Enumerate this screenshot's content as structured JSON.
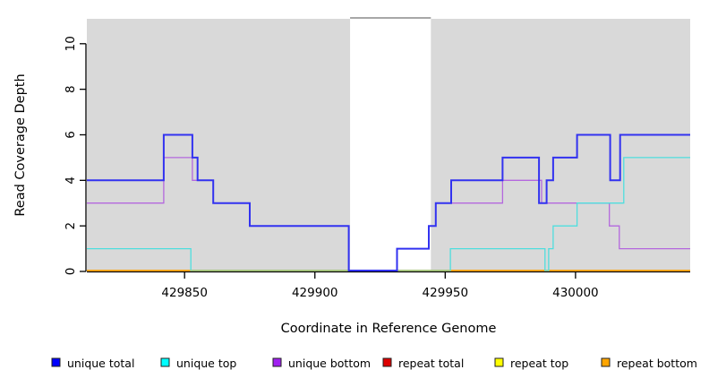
{
  "chart_data": {
    "type": "line",
    "subtype": "step-coverage",
    "title": "",
    "xlabel": "Coordinate in Reference Genome",
    "ylabel": "Read Coverage Depth",
    "x_range": [
      429812.5,
      430044
    ],
    "y_range": [
      0,
      11.33
    ],
    "x_ticks": [
      429850,
      429900,
      429950,
      430000
    ],
    "y_ticks": [
      0,
      2,
      4,
      6,
      8,
      10
    ],
    "grid": "off",
    "panel_bg_color": "#d9d9d9",
    "masked_region": {
      "x0": 429913.5,
      "x1": 429944.5,
      "fill": "#ffffff",
      "top_border_color": "#8a8a8a"
    },
    "legend_position": "bottom",
    "legend": [
      {
        "label": "unique total",
        "color": "#0000ff"
      },
      {
        "label": "unique top",
        "color": "#00ffff"
      },
      {
        "label": "unique bottom",
        "color": "#a020f0"
      },
      {
        "label": "repeat total",
        "color": "#dd0000"
      },
      {
        "label": "repeat top",
        "color": "#ffff00"
      },
      {
        "label": "repeat bottom",
        "color": "#ffa500"
      }
    ],
    "series": [
      {
        "name": "repeat total",
        "line_color": "#dd0000",
        "width": 1,
        "points": [
          [
            429812.5,
            0
          ],
          [
            430044,
            0
          ]
        ]
      },
      {
        "name": "repeat top",
        "line_color": "#ffff00",
        "width": 1,
        "points": [
          [
            429812.5,
            0
          ],
          [
            430044,
            0
          ]
        ]
      },
      {
        "name": "repeat bottom",
        "line_color": "#ff9e00",
        "width": 1.7,
        "points": [
          [
            429812.5,
            0
          ],
          [
            430044,
            0
          ]
        ]
      },
      {
        "name": "unique bottom",
        "line_color": "#b468de",
        "width": 1.3,
        "points": [
          [
            429812.5,
            3
          ],
          [
            429842,
            3
          ],
          [
            429842,
            5
          ],
          [
            429853,
            5
          ],
          [
            429853,
            4
          ],
          [
            429861,
            4
          ],
          [
            429861,
            3
          ],
          [
            429875,
            3
          ],
          [
            429875,
            2
          ],
          [
            429913,
            2
          ],
          [
            429913,
            0
          ],
          [
            429931.5,
            0
          ],
          [
            429931.5,
            1
          ],
          [
            429943.7,
            1
          ],
          [
            429943.7,
            2
          ],
          [
            429946.4,
            2
          ],
          [
            429946.4,
            3
          ],
          [
            429972,
            3
          ],
          [
            429972,
            4
          ],
          [
            429987,
            4
          ],
          [
            429987,
            3
          ],
          [
            430013,
            3
          ],
          [
            430013,
            2
          ],
          [
            430016.8,
            2
          ],
          [
            430016.8,
            1
          ],
          [
            430044,
            1
          ]
        ]
      },
      {
        "name": "unique top",
        "line_color": "#4fdede",
        "width": 1.3,
        "points": [
          [
            429812.5,
            1
          ],
          [
            429852.4,
            1
          ],
          [
            429852.4,
            0
          ],
          [
            429952,
            0
          ],
          [
            429952,
            1
          ],
          [
            429988.3,
            1
          ],
          [
            429988.3,
            0
          ],
          [
            429989.7,
            0
          ],
          [
            429989.7,
            1
          ],
          [
            429991.4,
            1
          ],
          [
            429991.4,
            2
          ],
          [
            430000.6,
            2
          ],
          [
            430000.6,
            3
          ],
          [
            430018.5,
            3
          ],
          [
            430018.5,
            5
          ],
          [
            430044,
            5
          ]
        ]
      },
      {
        "name": "unlabeled zero overlap",
        "line_color": "#8fc98f",
        "width": 1.3,
        "in_legend": false,
        "points": [
          [
            429852.4,
            0
          ],
          [
            429952,
            0
          ]
        ]
      },
      {
        "name": "unique total",
        "line_color": "#3232f0",
        "width": 2,
        "points": [
          [
            429812.5,
            4
          ],
          [
            429842,
            4
          ],
          [
            429842,
            6
          ],
          [
            429853,
            6
          ],
          [
            429853,
            5
          ],
          [
            429855,
            5
          ],
          [
            429855,
            4
          ],
          [
            429861,
            4
          ],
          [
            429861,
            3
          ],
          [
            429875,
            3
          ],
          [
            429875,
            2
          ],
          [
            429913,
            2
          ],
          [
            429913,
            0
          ],
          [
            429931.5,
            0
          ],
          [
            429931.5,
            1
          ],
          [
            429943.7,
            1
          ],
          [
            429943.7,
            2
          ],
          [
            429946.4,
            2
          ],
          [
            429946.4,
            3
          ],
          [
            429952.3,
            3
          ],
          [
            429952.3,
            4
          ],
          [
            429972,
            4
          ],
          [
            429972,
            5
          ],
          [
            429986,
            5
          ],
          [
            429986,
            3
          ],
          [
            429988.9,
            3
          ],
          [
            429988.9,
            4
          ],
          [
            429991.4,
            4
          ],
          [
            429991.4,
            5
          ],
          [
            430000.6,
            5
          ],
          [
            430000.6,
            6
          ],
          [
            430013.3,
            6
          ],
          [
            430013.3,
            4
          ],
          [
            430017.1,
            4
          ],
          [
            430017.1,
            6
          ],
          [
            430044,
            6
          ]
        ]
      }
    ]
  }
}
